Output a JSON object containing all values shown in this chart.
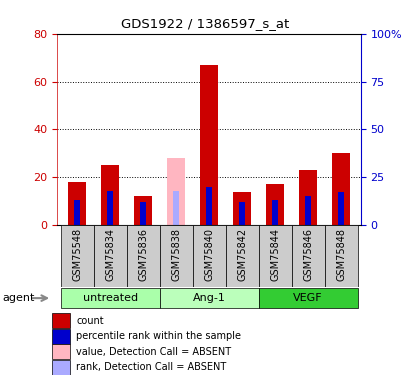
{
  "title": "GDS1922 / 1386597_s_at",
  "samples": [
    "GSM75548",
    "GSM75834",
    "GSM75836",
    "GSM75838",
    "GSM75840",
    "GSM75842",
    "GSM75844",
    "GSM75846",
    "GSM75848"
  ],
  "count_values": [
    18,
    25,
    12,
    0,
    67,
    14,
    17,
    23,
    30
  ],
  "rank_values": [
    13,
    18,
    12,
    0,
    20,
    12,
    13,
    15,
    17
  ],
  "absent_value": [
    0,
    0,
    0,
    28,
    0,
    0,
    0,
    0,
    0
  ],
  "absent_rank": [
    0,
    0,
    0,
    18,
    0,
    0,
    0,
    0,
    0
  ],
  "is_absent": [
    false,
    false,
    false,
    true,
    false,
    false,
    false,
    false,
    false
  ],
  "groups": [
    {
      "label": "untreated",
      "indices": [
        0,
        1,
        2
      ],
      "color": "#aaffaa"
    },
    {
      "label": "Ang-1",
      "indices": [
        3,
        4,
        5
      ],
      "color": "#ccffcc"
    },
    {
      "label": "VEGF",
      "indices": [
        6,
        7,
        8
      ],
      "color": "#44ee44"
    }
  ],
  "group_exact_colors": [
    "#aaffaa",
    "#bbffbb",
    "#33cc33"
  ],
  "left_ylim": [
    0,
    80
  ],
  "right_ylim": [
    0,
    100
  ],
  "left_yticks": [
    0,
    20,
    40,
    60,
    80
  ],
  "right_yticks": [
    0,
    25,
    50,
    75,
    100
  ],
  "right_yticklabels": [
    "0",
    "25",
    "50",
    "75",
    "100%"
  ],
  "color_count": "#cc0000",
  "color_rank": "#0000cc",
  "color_absent_value": "#ffb6c1",
  "color_absent_rank": "#aaaaff",
  "count_bar_width": 0.55,
  "rank_bar_width": 0.18,
  "agent_label": "agent",
  "ytick_color_left": "#cc0000",
  "ytick_color_right": "#0000cc",
  "xtick_bg_color": "#cccccc",
  "legend_items": [
    {
      "color": "#cc0000",
      "label": "count"
    },
    {
      "color": "#0000cc",
      "label": "percentile rank within the sample"
    },
    {
      "color": "#ffb6c1",
      "label": "value, Detection Call = ABSENT"
    },
    {
      "color": "#aaaaff",
      "label": "rank, Detection Call = ABSENT"
    }
  ]
}
